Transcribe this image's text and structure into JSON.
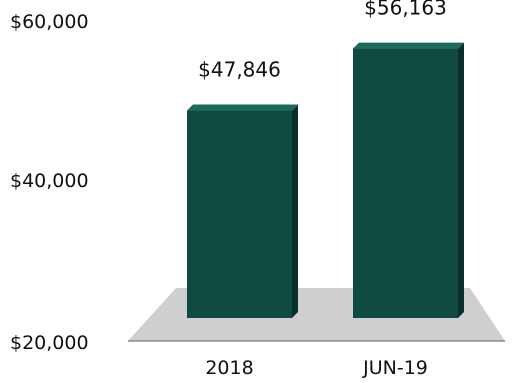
{
  "chart_data": {
    "type": "bar",
    "categories": [
      "2018",
      "JUN-19"
    ],
    "values": [
      47846,
      56163
    ],
    "data_labels": [
      "$47,846",
      "$56,163"
    ],
    "ylim": [
      20000,
      60000
    ],
    "y_ticks": [
      20000,
      40000,
      60000
    ],
    "y_tick_labels": [
      "$20,000",
      "$40,000",
      "$60,000"
    ],
    "title": "",
    "xlabel": "",
    "ylabel": "",
    "grid": false,
    "style": "3d",
    "colors": {
      "bar": "#0e4a40",
      "bar_side": "#07302a",
      "bar_top": "#1c6a5c",
      "floor": "#cfcfd1"
    }
  }
}
